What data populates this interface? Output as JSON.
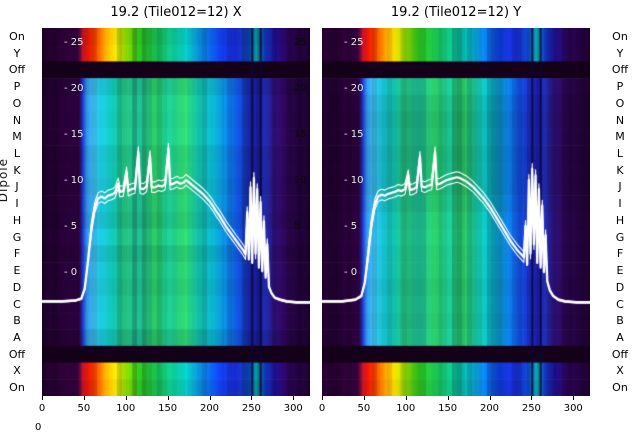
{
  "figure": {
    "background": "#ffffff",
    "y_axis_label": "Dipole",
    "bottom_left_label": "0"
  },
  "chart_data": {
    "type": "heatmap",
    "xlabel": "",
    "ylabel": "Dipole",
    "x_range": [
      0,
      320
    ],
    "x_ticks": [
      0,
      50,
      100,
      150,
      200,
      250,
      300
    ],
    "overlay_y_axis_range": [
      0,
      25
    ],
    "row_labels": [
      "On",
      "Y",
      "Off",
      "P",
      "O",
      "N",
      "M",
      "L",
      "K",
      "J",
      "I",
      "H",
      "G",
      "F",
      "E",
      "D",
      "C",
      "B",
      "A",
      "Off",
      "X",
      "On"
    ],
    "row_types": [
      "band",
      "band",
      "off",
      "main",
      "main",
      "main",
      "main",
      "main",
      "main",
      "main",
      "main",
      "main",
      "main",
      "main",
      "main",
      "main",
      "main",
      "main",
      "main",
      "off",
      "band",
      "band"
    ],
    "inner_y_ticks_left": [
      "- 25",
      "- 20",
      "- 15",
      "- 10",
      "- 5",
      "- 0"
    ],
    "inner_y_tick_values": [
      25,
      20,
      15,
      10,
      5,
      0
    ],
    "inner_y_ticks_right": [
      "25",
      "20",
      "15",
      "10",
      "5"
    ],
    "inner_y_tick_right_values": [
      25,
      20,
      15,
      10,
      5
    ],
    "dark_line_channels": [
      251,
      261
    ],
    "colors": {
      "off_row": "#140019",
      "dark_line": "rgba(8,6,60,0.8)",
      "overlay_line": "#ffffff",
      "band_stops": [
        [
          0.0,
          "#20012a"
        ],
        [
          0.13,
          "#33023e"
        ],
        [
          0.15,
          "#c41430"
        ],
        [
          0.17,
          "#e81600"
        ],
        [
          0.2,
          "#f04800"
        ],
        [
          0.235,
          "#f8a000"
        ],
        [
          0.27,
          "#f0d800"
        ],
        [
          0.31,
          "#90d800"
        ],
        [
          0.36,
          "#2cc81e"
        ],
        [
          0.42,
          "#1ab84a"
        ],
        [
          0.48,
          "#0cba86"
        ],
        [
          0.54,
          "#06b6b6"
        ],
        [
          0.6,
          "#0a7ede"
        ],
        [
          0.66,
          "#1040e8"
        ],
        [
          0.72,
          "#1828c8"
        ],
        [
          0.77,
          "#0e48c0"
        ],
        [
          0.8,
          "#08a09a"
        ],
        [
          0.83,
          "#1034b8"
        ],
        [
          0.87,
          "#200d8a"
        ],
        [
          0.91,
          "#2a0458"
        ],
        [
          1.0,
          "#1c012a"
        ]
      ],
      "main_stops": [
        [
          0.0,
          "#1c0128"
        ],
        [
          0.135,
          "#2d0140"
        ],
        [
          0.15,
          "#2233cc"
        ],
        [
          0.165,
          "#2e8fe0"
        ],
        [
          0.19,
          "#3ab8e8"
        ],
        [
          0.22,
          "#18b4c8"
        ],
        [
          0.26,
          "#10b4a8"
        ],
        [
          0.31,
          "#22bc7a"
        ],
        [
          0.36,
          "#1cb894"
        ],
        [
          0.42,
          "#28c060"
        ],
        [
          0.47,
          "#18b88a"
        ],
        [
          0.53,
          "#2abf62"
        ],
        [
          0.58,
          "#12b49e"
        ],
        [
          0.63,
          "#0aaec0"
        ],
        [
          0.68,
          "#0c86d8"
        ],
        [
          0.73,
          "#1050d8"
        ],
        [
          0.77,
          "#1b2cb8"
        ],
        [
          0.8,
          "#1a1a96"
        ],
        [
          0.83,
          "#202cb0"
        ],
        [
          0.86,
          "#2a1278"
        ],
        [
          0.9,
          "#2a0550"
        ],
        [
          1.0,
          "#1a0128"
        ]
      ]
    },
    "panels": [
      {
        "title": "19.2 (Tile012=12) X",
        "line_points": [
          [
            0,
            -3.2
          ],
          [
            24,
            -3.2
          ],
          [
            40,
            -3.1
          ],
          [
            47,
            -2.9
          ],
          [
            51,
            -1.8
          ],
          [
            55,
            1.2
          ],
          [
            59,
            4.8
          ],
          [
            63,
            7.0
          ],
          [
            67,
            8.0
          ],
          [
            71,
            8.2
          ],
          [
            75,
            8.0
          ],
          [
            79,
            8.3
          ],
          [
            83,
            8.4
          ],
          [
            87,
            8.6
          ],
          [
            91,
            9.6
          ],
          [
            93,
            8.7
          ],
          [
            97,
            8.8
          ],
          [
            101,
            10.8
          ],
          [
            103,
            8.8
          ],
          [
            107,
            9.0
          ],
          [
            111,
            9.1
          ],
          [
            115,
            13.0
          ],
          [
            117,
            9.1
          ],
          [
            121,
            9.0
          ],
          [
            125,
            9.3
          ],
          [
            129,
            12.6
          ],
          [
            131,
            9.2
          ],
          [
            135,
            9.2
          ],
          [
            139,
            9.4
          ],
          [
            143,
            9.3
          ],
          [
            147,
            9.5
          ],
          [
            151,
            13.4
          ],
          [
            153,
            9.5
          ],
          [
            157,
            9.6
          ],
          [
            161,
            9.8
          ],
          [
            165,
            9.6
          ],
          [
            169,
            9.7
          ],
          [
            172,
            10.0
          ],
          [
            176,
            9.7
          ],
          [
            180,
            9.4
          ],
          [
            184,
            9.1
          ],
          [
            188,
            8.8
          ],
          [
            192,
            8.5
          ],
          [
            196,
            8.1
          ],
          [
            200,
            7.7
          ],
          [
            204,
            7.2
          ],
          [
            208,
            6.6
          ],
          [
            212,
            6.1
          ],
          [
            216,
            5.5
          ],
          [
            220,
            4.9
          ],
          [
            224,
            4.4
          ],
          [
            228,
            3.9
          ],
          [
            232,
            3.4
          ],
          [
            236,
            2.9
          ],
          [
            240,
            2.4
          ],
          [
            243,
            1.9
          ],
          [
            245,
            6.5
          ],
          [
            247,
            1.4
          ],
          [
            249,
            9.2
          ],
          [
            251,
            1.0
          ],
          [
            253,
            10.2
          ],
          [
            255,
            2.0
          ],
          [
            257,
            9.0
          ],
          [
            259,
            0.5
          ],
          [
            261,
            7.6
          ],
          [
            263,
            0.1
          ],
          [
            265,
            5.5
          ],
          [
            267,
            -0.6
          ],
          [
            269,
            3.0
          ],
          [
            271,
            -1.6
          ],
          [
            274,
            -2.3
          ],
          [
            278,
            -2.8
          ],
          [
            284,
            -3.0
          ],
          [
            292,
            -3.2
          ],
          [
            304,
            -3.3
          ],
          [
            320,
            -3.3
          ]
        ]
      },
      {
        "title": "19.2 (Tile012=12) Y",
        "line_points": [
          [
            0,
            -3.2
          ],
          [
            24,
            -3.2
          ],
          [
            40,
            -3.0
          ],
          [
            47,
            -2.6
          ],
          [
            51,
            -1.2
          ],
          [
            55,
            1.8
          ],
          [
            59,
            5.2
          ],
          [
            63,
            7.3
          ],
          [
            67,
            8.2
          ],
          [
            71,
            8.4
          ],
          [
            75,
            8.3
          ],
          [
            79,
            8.5
          ],
          [
            83,
            8.6
          ],
          [
            87,
            8.7
          ],
          [
            91,
            8.9
          ],
          [
            95,
            8.8
          ],
          [
            99,
            9.0
          ],
          [
            103,
            10.5
          ],
          [
            105,
            8.9
          ],
          [
            109,
            9.0
          ],
          [
            113,
            9.2
          ],
          [
            117,
            12.5
          ],
          [
            119,
            9.3
          ],
          [
            123,
            9.2
          ],
          [
            127,
            9.4
          ],
          [
            131,
            9.5
          ],
          [
            135,
            13.0
          ],
          [
            137,
            9.5
          ],
          [
            141,
            9.6
          ],
          [
            145,
            9.8
          ],
          [
            149,
            10.0
          ],
          [
            153,
            10.1
          ],
          [
            157,
            10.2
          ],
          [
            161,
            10.3
          ],
          [
            165,
            10.2
          ],
          [
            169,
            10.0
          ],
          [
            173,
            9.8
          ],
          [
            177,
            9.5
          ],
          [
            181,
            9.2
          ],
          [
            185,
            8.8
          ],
          [
            189,
            8.4
          ],
          [
            193,
            8.0
          ],
          [
            197,
            7.5
          ],
          [
            201,
            7.0
          ],
          [
            205,
            6.4
          ],
          [
            209,
            5.8
          ],
          [
            213,
            5.2
          ],
          [
            217,
            4.6
          ],
          [
            221,
            4.0
          ],
          [
            225,
            3.4
          ],
          [
            229,
            2.9
          ],
          [
            233,
            2.4
          ],
          [
            237,
            2.0
          ],
          [
            241,
            1.6
          ],
          [
            243,
            5.0
          ],
          [
            245,
            0.8
          ],
          [
            247,
            10.0
          ],
          [
            249,
            2.0
          ],
          [
            251,
            11.2
          ],
          [
            253,
            3.0
          ],
          [
            255,
            10.5
          ],
          [
            257,
            1.0
          ],
          [
            259,
            9.0
          ],
          [
            261,
            0.5
          ],
          [
            263,
            7.2
          ],
          [
            265,
            0.0
          ],
          [
            267,
            4.0
          ],
          [
            269,
            -1.0
          ],
          [
            272,
            -2.0
          ],
          [
            276,
            -2.6
          ],
          [
            282,
            -3.0
          ],
          [
            290,
            -3.2
          ],
          [
            304,
            -3.3
          ],
          [
            320,
            -3.3
          ]
        ]
      }
    ]
  }
}
